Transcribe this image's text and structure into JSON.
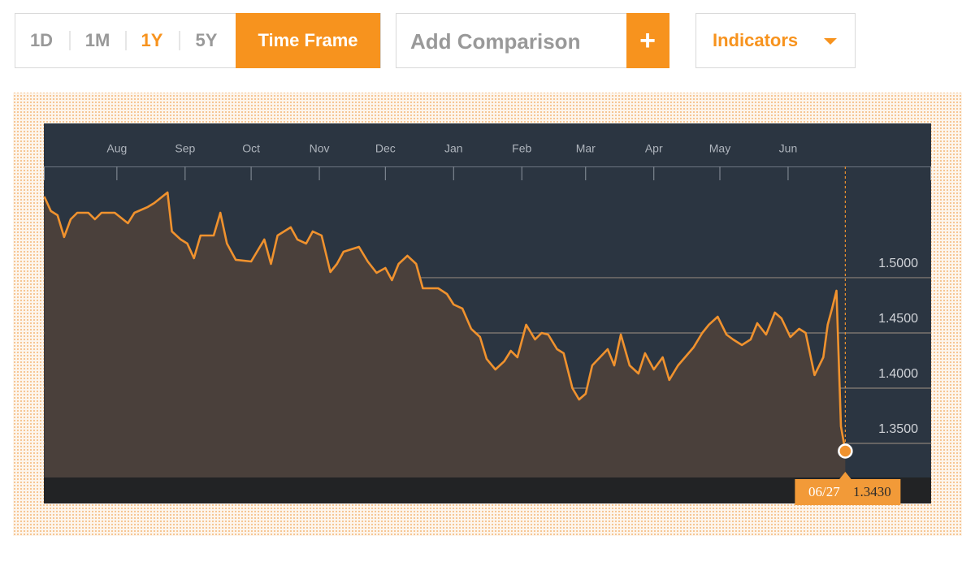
{
  "toolbar": {
    "ranges": [
      "1D",
      "1M",
      "1Y",
      "5Y"
    ],
    "active_range": 2,
    "time_frame": "Time Frame",
    "comparison_placeholder": "Add Comparison",
    "add_button": "+",
    "indicators": "Indicators"
  },
  "chart_data": {
    "type": "line",
    "x": [
      0,
      3,
      6,
      9,
      12,
      15,
      20,
      23,
      26,
      32,
      38,
      41,
      47,
      50,
      56,
      58,
      62,
      65,
      68,
      71,
      77,
      80,
      83,
      87,
      94,
      100,
      103,
      106,
      112,
      115,
      119,
      122,
      126,
      130,
      133,
      136,
      143,
      147,
      151,
      155,
      158,
      161,
      165,
      169,
      172,
      179,
      183,
      186,
      190,
      194,
      198,
      201,
      205,
      209,
      212,
      215,
      219,
      223,
      226,
      229,
      233,
      236,
      240,
      243,
      246,
      249,
      256,
      259,
      262,
      266,
      270,
      273,
      277,
      281,
      284,
      288,
      295,
      299,
      302,
      306,
      310,
      313,
      317,
      321,
      324,
      328,
      332,
      335,
      339,
      343,
      346,
      350,
      354,
      356,
      358,
      360,
      362,
      364
    ],
    "series": [
      {
        "color": "#f0922e",
        "values": [
          1.5735,
          1.5603,
          1.5566,
          1.5368,
          1.5529,
          1.5588,
          1.5588,
          1.5529,
          1.5588,
          1.5588,
          1.5493,
          1.5588,
          1.564,
          1.5676,
          1.5772,
          1.5419,
          1.5346,
          1.5309,
          1.5176,
          1.5382,
          1.5382,
          1.5588,
          1.5309,
          1.5162,
          1.5147,
          1.5346,
          1.5125,
          1.5382,
          1.5456,
          1.5346,
          1.5309,
          1.5419,
          1.5382,
          1.5051,
          1.5125,
          1.5235,
          1.5279,
          1.5147,
          1.5044,
          1.5088,
          1.4978,
          1.5125,
          1.5199,
          1.5125,
          1.4904,
          1.4904,
          1.4853,
          1.4757,
          1.4721,
          1.4537,
          1.4463,
          1.4265,
          1.4169,
          1.4243,
          1.4338,
          1.4279,
          1.4574,
          1.4441,
          1.45,
          1.4485,
          1.4353,
          1.4316,
          1.4,
          1.3897,
          1.3949,
          1.4206,
          1.4353,
          1.4206,
          1.4485,
          1.4206,
          1.4132,
          1.4316,
          1.4169,
          1.4279,
          1.4074,
          1.4206,
          1.4368,
          1.45,
          1.4574,
          1.4647,
          1.4485,
          1.4441,
          1.439,
          1.4441,
          1.4588,
          1.4485,
          1.4684,
          1.4632,
          1.4463,
          1.4537,
          1.45,
          1.4118,
          1.4279,
          1.4574,
          1.4721,
          1.4882,
          1.3654,
          1.343
        ]
      }
    ],
    "xlim": [
      0,
      403
    ],
    "xticks": [
      {
        "value": 33,
        "label": "Aug"
      },
      {
        "value": 64,
        "label": "Sep"
      },
      {
        "value": 94,
        "label": "Oct"
      },
      {
        "value": 125,
        "label": "Nov"
      },
      {
        "value": 155,
        "label": "Dec"
      },
      {
        "value": 186,
        "label": "Jan"
      },
      {
        "value": 217,
        "label": "Feb"
      },
      {
        "value": 246,
        "label": "Mar"
      },
      {
        "value": 277,
        "label": "Apr"
      },
      {
        "value": 307,
        "label": "May"
      },
      {
        "value": 338,
        "label": "Jun"
      }
    ],
    "ylim": [
      1.3191,
      1.6007
    ],
    "yticks": [
      {
        "value": 1.5,
        "label": "1.5000"
      },
      {
        "value": 1.45,
        "label": "1.4500"
      },
      {
        "value": 1.4,
        "label": "1.4000"
      },
      {
        "value": 1.35,
        "label": "1.3500"
      }
    ],
    "grid": true,
    "crosshair": {
      "x": 364,
      "x_label": "06/27",
      "y": 1.343,
      "y_label": "1.3430"
    }
  }
}
